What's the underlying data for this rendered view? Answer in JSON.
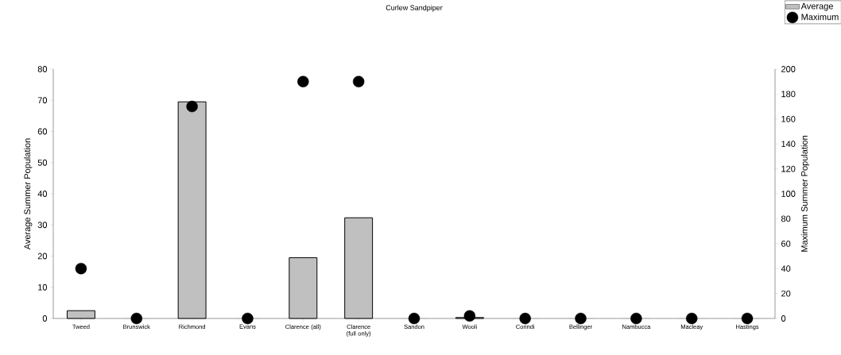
{
  "chart_data": {
    "type": "bar",
    "title": "Curlew Sandpiper",
    "ylabel": "Average Summer Population",
    "y2label": "Maximum Summer Population",
    "categories": [
      "Tweed",
      "Brunswick",
      "Richmond",
      "Evans",
      "Clarence (all)",
      "Clarence (full only)",
      "Sandon",
      "Wooli",
      "Corindi",
      "Bellinger",
      "Nambucca",
      "Macleay",
      "Hastings"
    ],
    "series": [
      {
        "name": "Average",
        "color": "#c0c0c0",
        "values": [
          2.5,
          0,
          69.5,
          0,
          19.5,
          32.3,
          0,
          0.3,
          0,
          0,
          0,
          0,
          0
        ]
      },
      {
        "name": "Maximum",
        "type": "scatter",
        "axis": "y2",
        "color": "#000000",
        "values": [
          40,
          0,
          170,
          0,
          190,
          190,
          0,
          2,
          0,
          0,
          0,
          0,
          0
        ]
      }
    ],
    "ylim": [
      0,
      80
    ],
    "yticks": [
      0,
      10,
      20,
      30,
      40,
      50,
      60,
      70,
      80
    ],
    "y2lim": [
      0,
      200
    ],
    "y2ticks": [
      0,
      20,
      40,
      60,
      80,
      100,
      120,
      140,
      160,
      180,
      200
    ],
    "legend": "top right",
    "marker": "circle",
    "grid": false
  }
}
